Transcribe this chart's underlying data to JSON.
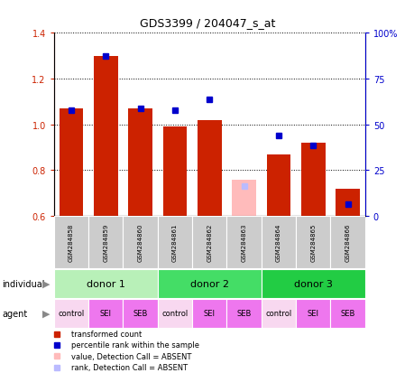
{
  "title": "GDS3399 / 204047_s_at",
  "samples": [
    "GSM284858",
    "GSM284859",
    "GSM284860",
    "GSM284861",
    "GSM284862",
    "GSM284863",
    "GSM284864",
    "GSM284865",
    "GSM284866"
  ],
  "red_values": [
    1.07,
    1.3,
    1.07,
    0.99,
    1.02,
    null,
    0.87,
    0.92,
    0.72
  ],
  "blue_values": [
    1.06,
    1.3,
    1.07,
    1.06,
    1.11,
    null,
    0.95,
    0.91,
    0.65
  ],
  "pink_value": 0.76,
  "lightblue_value": 0.73,
  "absent_sample_idx": 5,
  "ylim_left": [
    0.6,
    1.4
  ],
  "ylim_right": [
    0,
    100
  ],
  "yticks_left": [
    0.6,
    0.8,
    1.0,
    1.2,
    1.4
  ],
  "yticks_right": [
    0,
    25,
    50,
    75,
    100
  ],
  "yticklabels_right": [
    "0",
    "25",
    "50",
    "75",
    "100%"
  ],
  "donors": [
    {
      "label": "donor 1",
      "start": 0,
      "end": 3,
      "color": "#b8f0b8"
    },
    {
      "label": "donor 2",
      "start": 3,
      "end": 6,
      "color": "#44dd66"
    },
    {
      "label": "donor 3",
      "start": 6,
      "end": 9,
      "color": "#22cc44"
    }
  ],
  "agents": [
    "control",
    "SEI",
    "SEB",
    "control",
    "SEI",
    "SEB",
    "control",
    "SEI",
    "SEB"
  ],
  "bar_width": 0.7,
  "red_color": "#cc2200",
  "blue_color": "#0000cc",
  "pink_color": "#ffbbbb",
  "lightblue_color": "#bbbbff",
  "baseline": 0.6,
  "legend_items": [
    {
      "color": "#cc2200",
      "label": "transformed count"
    },
    {
      "color": "#0000cc",
      "label": "percentile rank within the sample"
    },
    {
      "color": "#ffbbbb",
      "label": "value, Detection Call = ABSENT"
    },
    {
      "color": "#bbbbff",
      "label": "rank, Detection Call = ABSENT"
    }
  ],
  "ctrl_color": "#f8d8f0",
  "sei_seb_color": "#ee77ee",
  "gray_color": "#cccccc",
  "title_fontsize": 9,
  "tick_fontsize": 7,
  "sample_fontsize": 5,
  "donor_fontsize": 8,
  "agent_fontsize": 6,
  "legend_fontsize": 6,
  "label_fontsize": 7
}
